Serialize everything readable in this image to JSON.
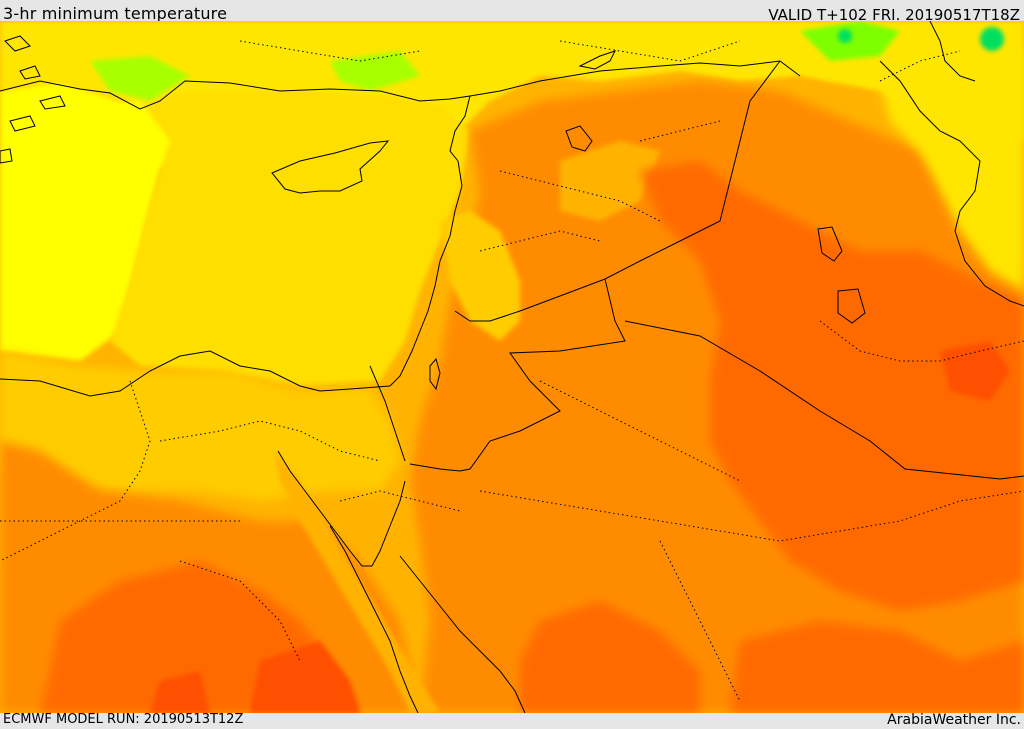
{
  "header": {
    "title": "3-hr minimum temperature",
    "valid": "VALID T+102 FRI. 20190517T18Z"
  },
  "footer": {
    "model_run": "ECMWF MODEL RUN: 20190513T12Z",
    "credit": "ArabiaWeather Inc."
  },
  "colors": {
    "frame": "#e6e6e6",
    "sea_yellow": "#ffff00",
    "warm_yellow": "#ffdf00",
    "orange_light": "#ffb300",
    "orange": "#ff8c00",
    "orange_red": "#ff6a00",
    "red_orange": "#ff4f00",
    "cool_green": "#7dff00",
    "cold_green": "#00e060",
    "border_line": "#000000"
  }
}
